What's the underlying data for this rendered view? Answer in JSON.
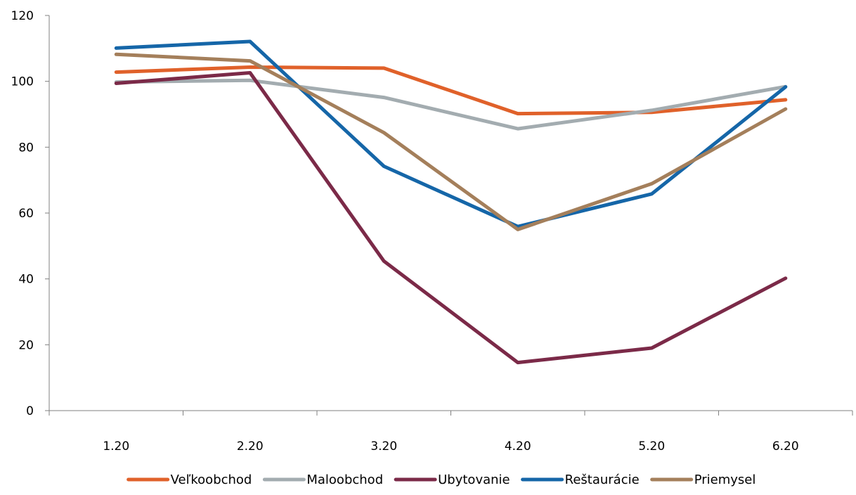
{
  "chart_data": {
    "type": "line",
    "categories": [
      "1.20",
      "2.20",
      "3.20",
      "4.20",
      "5.20",
      "6.20"
    ],
    "ylim": [
      0,
      120
    ],
    "yticks": [
      0,
      20,
      40,
      60,
      80,
      100,
      120
    ],
    "grid": false,
    "legend_position": "bottom",
    "series": [
      {
        "name": "Veľkoobchod",
        "color": "#E0612A",
        "values": [
          102.8,
          104.3,
          104.0,
          90.2,
          90.6,
          94.4
        ]
      },
      {
        "name": "Maloobchod",
        "color": "#A3ACB0",
        "values": [
          99.8,
          100.3,
          95.1,
          85.6,
          91.2,
          98.4
        ]
      },
      {
        "name": "Ubytovanie",
        "color": "#7B2A48",
        "values": [
          99.4,
          102.6,
          45.4,
          14.6,
          19.0,
          40.2
        ]
      },
      {
        "name": "Reštaurácie",
        "color": "#1566A8",
        "values": [
          110.1,
          112.1,
          74.2,
          55.9,
          65.8,
          98.3
        ]
      },
      {
        "name": "Priemysel",
        "color": "#A47F5B",
        "values": [
          108.2,
          106.2,
          84.4,
          55.0,
          68.9,
          91.6
        ]
      }
    ]
  }
}
